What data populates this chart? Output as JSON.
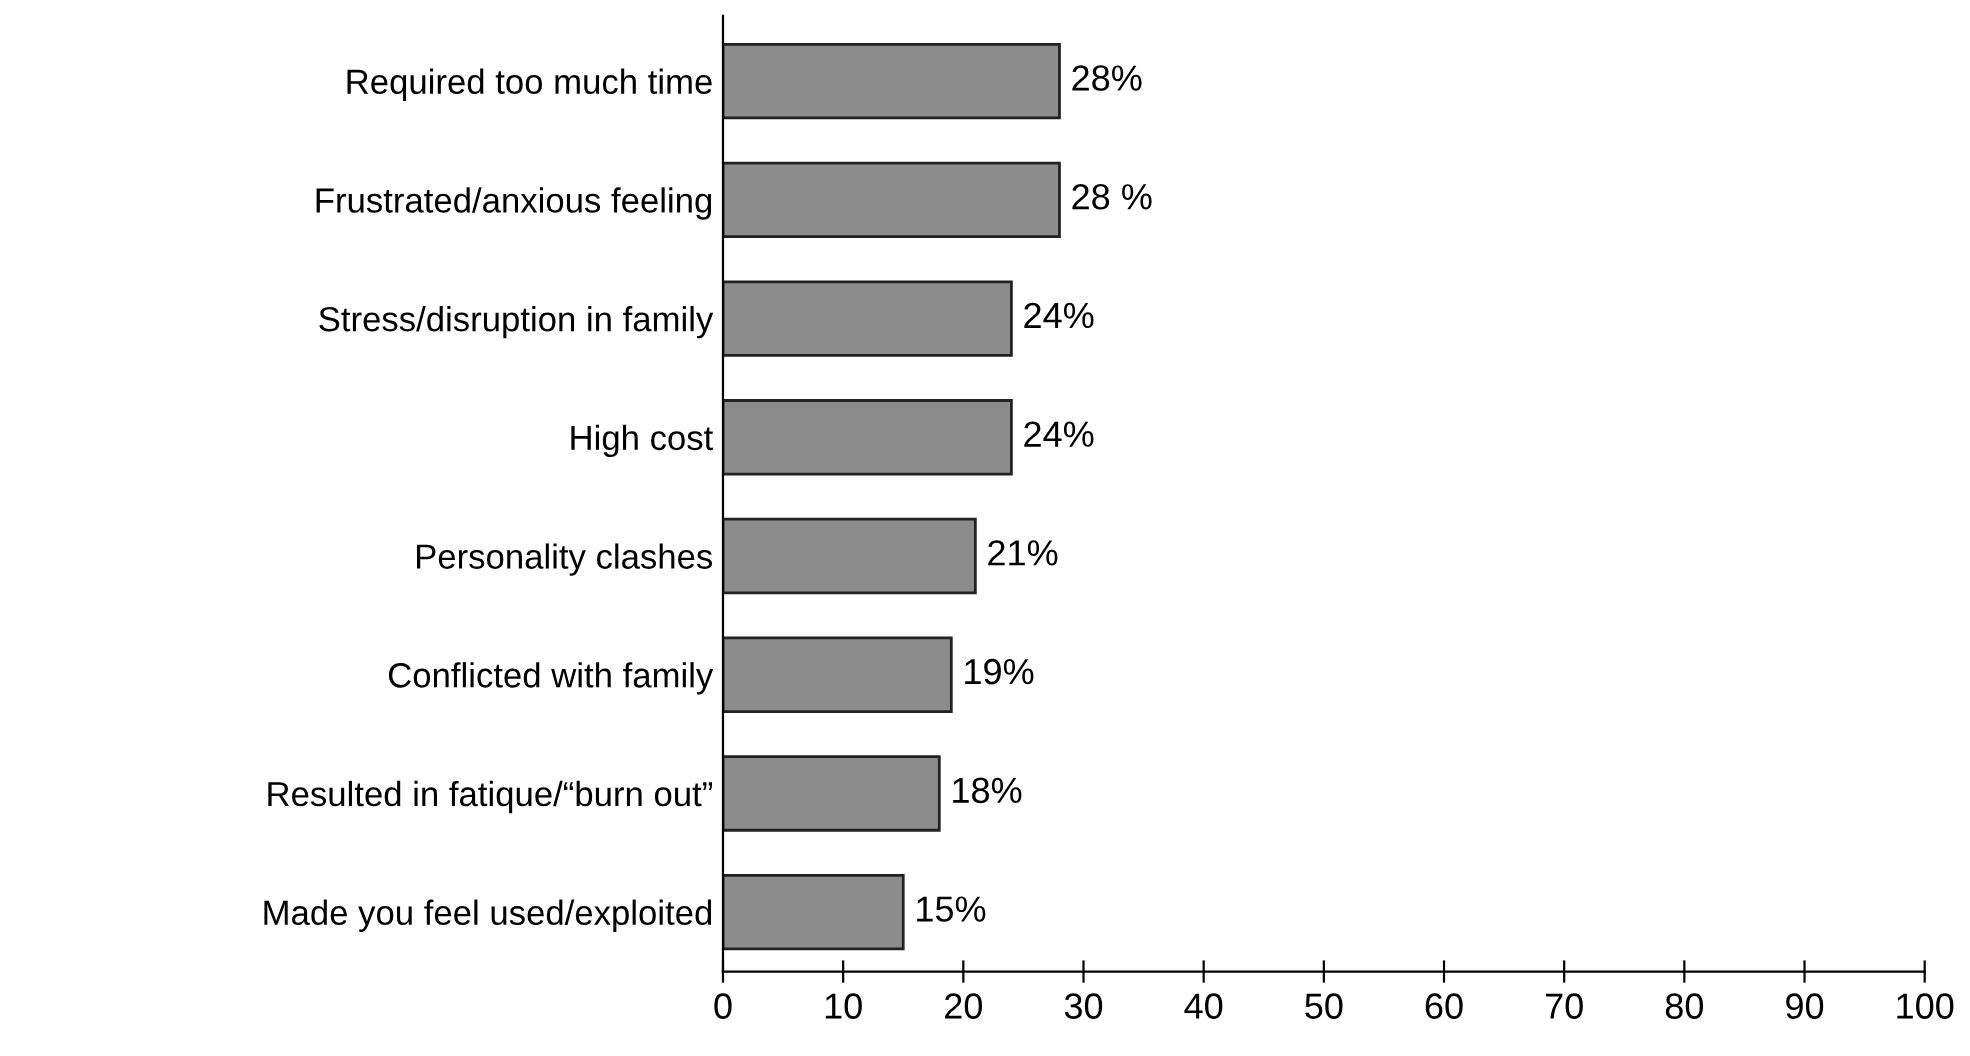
{
  "chart_data": {
    "type": "bar",
    "orientation": "horizontal",
    "categories": [
      "Required too much time",
      "Frustrated/anxious feeling",
      "Stress/disruption in family",
      "High cost",
      "Personality clashes",
      "Conflicted with family",
      "Resulted in fatique/“burn out”",
      "Made you feel used/exploited"
    ],
    "values": [
      28,
      28,
      24,
      24,
      21,
      19,
      18,
      15
    ],
    "value_labels": [
      "28%",
      "28 %",
      "24%",
      "24%",
      "21%",
      "19%",
      "18%",
      "15%"
    ],
    "color": "#8c8c8c",
    "xlim": [
      0,
      100
    ],
    "xticks": [
      0,
      10,
      20,
      30,
      40,
      50,
      60,
      70,
      80,
      90,
      100
    ],
    "grid": false
  }
}
